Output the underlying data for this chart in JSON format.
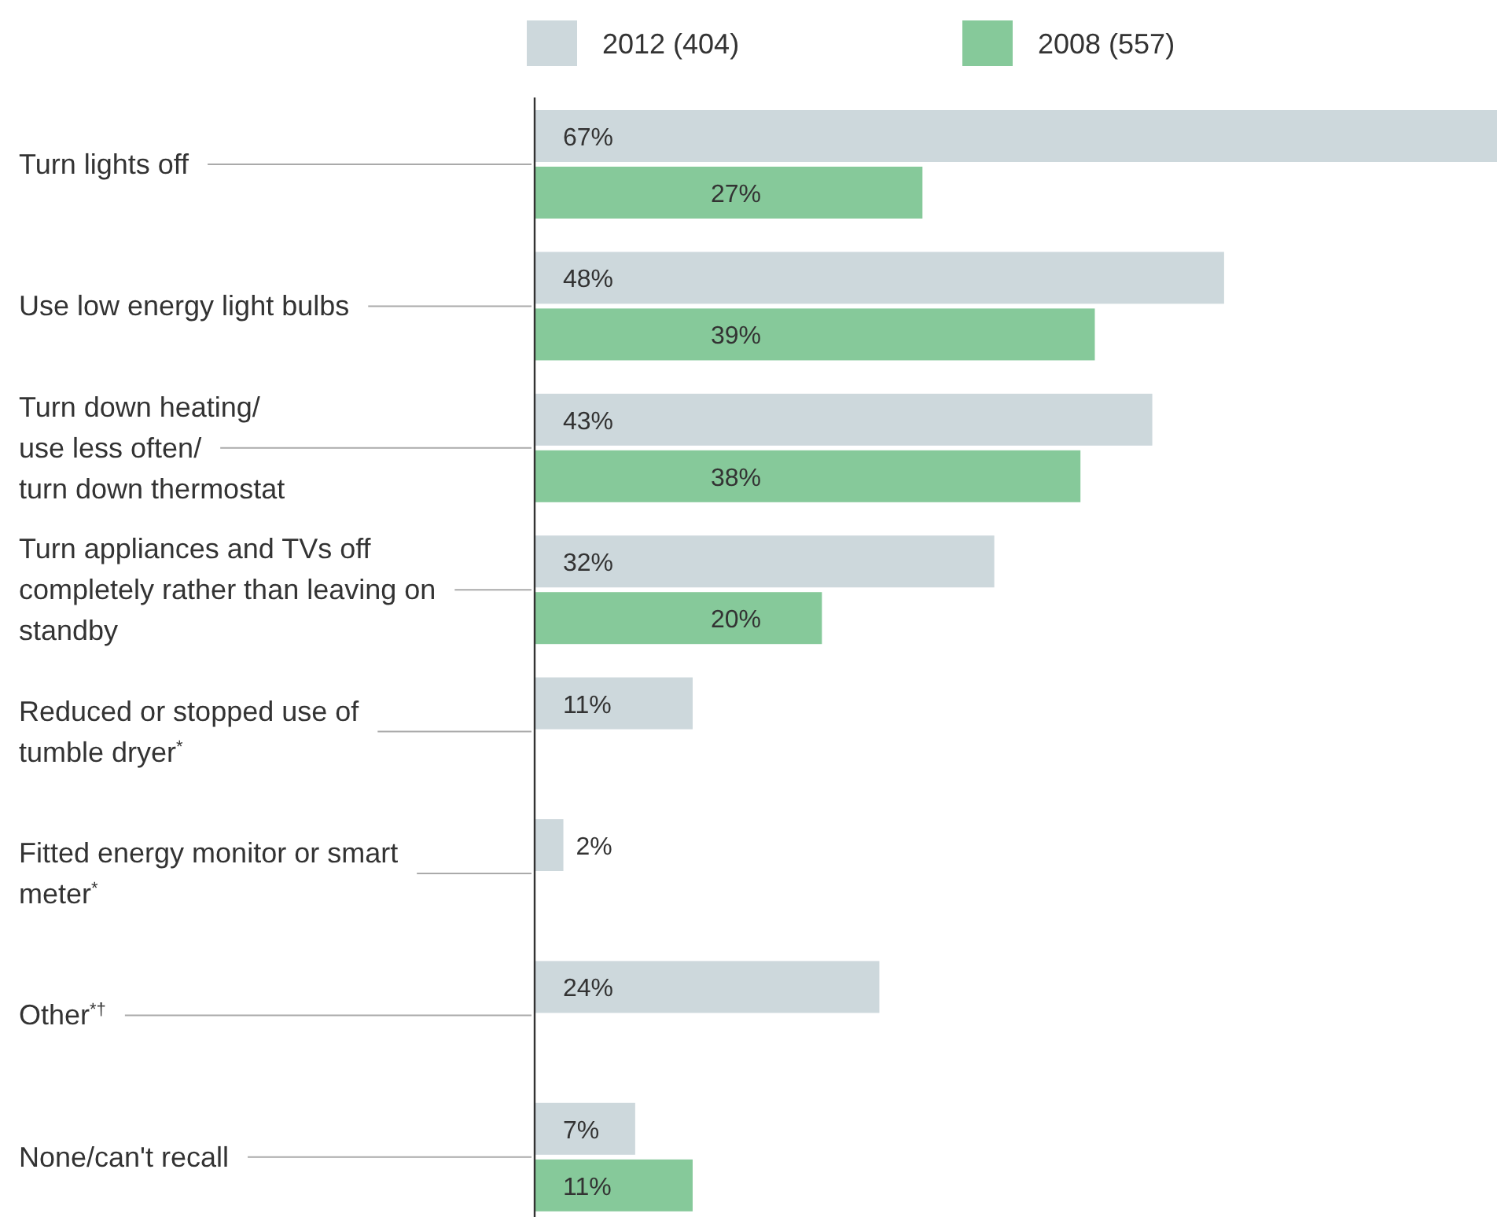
{
  "chart_data": {
    "type": "bar",
    "orientation": "horizontal",
    "categories": [
      "Turn lights off",
      "Use low energy light bulbs",
      "Turn down heating/ use less often/ turn down thermostat",
      "Turn appliances and TVs off completely rather than leaving on standby",
      "Reduced or stopped use of tumble dryer$^{*}$",
      "Fitted energy monitor or smart meter$^{*}$",
      "Other$^{*†}$",
      "None/can't recall"
    ],
    "series": [
      {
        "name": "2012 (404)",
        "color": "#cdd8dc",
        "values": [
          67,
          48,
          43,
          32,
          11,
          2,
          24,
          7
        ],
        "value_labels": [
          "67%",
          "48%",
          "43%",
          "32%",
          "11%",
          "2%",
          "24%",
          "7%"
        ]
      },
      {
        "name": "2008 (557)",
        "color": "#86c99a",
        "values": [
          27,
          39,
          38,
          20,
          null,
          null,
          null,
          11
        ],
        "value_labels": [
          "27%",
          "39%",
          "38%",
          "20%",
          null,
          null,
          null,
          "11%"
        ]
      }
    ],
    "xlim": [
      0,
      67
    ],
    "tick_labels": "y",
    "legend": "top"
  }
}
